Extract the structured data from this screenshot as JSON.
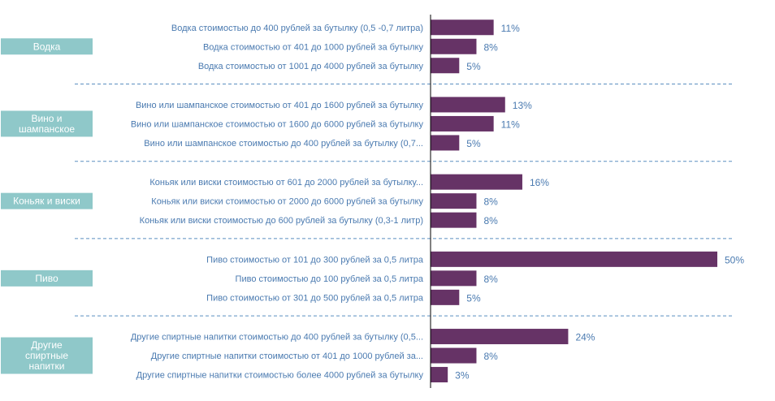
{
  "colors": {
    "bar": "#663366",
    "group_box": "#8fc8c9",
    "label_text": "#4a7ab0",
    "separator": "#5a8fc0",
    "axis": "#000000"
  },
  "chart_data": {
    "type": "bar",
    "orientation": "horizontal",
    "value_format": "percent",
    "xlim": [
      0,
      50
    ],
    "grid": false,
    "legend": "none",
    "groups": [
      {
        "label": "Водка",
        "items": [
          {
            "category": "Водка стоимостью до 400 рублей за бутылку (0,5 -0,7 литра)",
            "value": 11,
            "value_label": "11%"
          },
          {
            "category": "Водка стоимостью от 401 до 1000 рублей за бутылку",
            "value": 8,
            "value_label": "8%"
          },
          {
            "category": "Водка стоимостью от 1001 до 4000 рублей за бутылку",
            "value": 5,
            "value_label": "5%"
          }
        ]
      },
      {
        "label": "Вино и шампанское",
        "items": [
          {
            "category": "Вино или шампанское стоимостью от 401 до 1600 рублей за бутылку",
            "value": 13,
            "value_label": "13%"
          },
          {
            "category": "Вино или шампанское стоимостью от 1600 до 6000 рублей за бутылку",
            "value": 11,
            "value_label": "11%"
          },
          {
            "category": "Вино или шампанское стоимостью до 400 рублей за бутылку (0,7...",
            "value": 5,
            "value_label": "5%"
          }
        ]
      },
      {
        "label": "Коньяк и виски",
        "items": [
          {
            "category": "Коньяк или виски стоимостью от 601 до 2000 рублей за бутылку...",
            "value": 16,
            "value_label": "16%"
          },
          {
            "category": "Коньяк  или виски стоимостью от  2000  до 6000 рублей за бутылку",
            "value": 8,
            "value_label": "8%"
          },
          {
            "category": "Коньяк или виски  стоимостью до 600 рублей за бутылку (0,3-1 литр)",
            "value": 8,
            "value_label": "8%"
          }
        ]
      },
      {
        "label": "Пиво",
        "items": [
          {
            "category": "Пиво  стоимостью от 101 до 300 рублей за 0,5 литра",
            "value": 50,
            "value_label": "50%"
          },
          {
            "category": "Пиво стоимостью до 100 рублей за 0,5 литра",
            "value": 8,
            "value_label": "8%"
          },
          {
            "category": "Пиво стоимостью от 301 до 500 рублей за 0,5 литра",
            "value": 5,
            "value_label": "5%"
          }
        ]
      },
      {
        "label": "Другие спиртные напитки",
        "items": [
          {
            "category": "Другие спиртные напитки стоимостью до 400 рублей за бутылку (0,5...",
            "value": 24,
            "value_label": "24%"
          },
          {
            "category": "Другие спиртные напитки стоимостью от 401 до 1000 рублей за...",
            "value": 8,
            "value_label": "8%"
          },
          {
            "category": "Другие спиртные напитки стоимостью более 4000 рублей за бутылку",
            "value": 3,
            "value_label": "3%"
          }
        ]
      }
    ]
  }
}
